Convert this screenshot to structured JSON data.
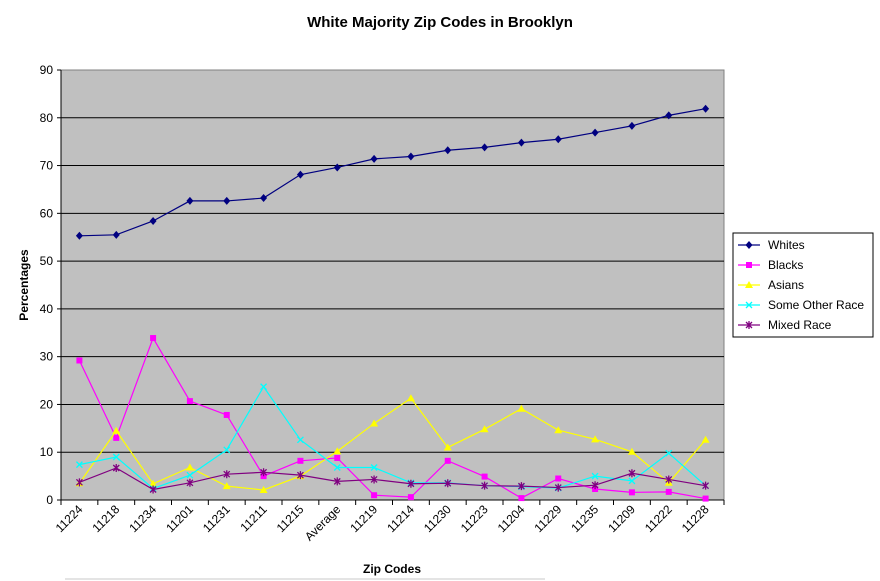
{
  "chart_data": {
    "type": "line",
    "title": "White Majority Zip Codes in Brooklyn",
    "xlabel": "Zip Codes",
    "ylabel": "Percentages",
    "ylim": [
      0,
      90
    ],
    "yticks": [
      0,
      10,
      20,
      30,
      40,
      50,
      60,
      70,
      80,
      90
    ],
    "grid": "horizontal",
    "plot_background": "#C0C0C0",
    "legend_position": "right",
    "categories": [
      "11224",
      "11218",
      "11234",
      "11201",
      "11231",
      "11211",
      "11215",
      "Average",
      "11219",
      "11214",
      "11230",
      "11223",
      "11204",
      "11229",
      "11235",
      "11209",
      "11222",
      "11228"
    ],
    "series": [
      {
        "name": "Whites",
        "color": "#000080",
        "marker": "diamond",
        "values": [
          55.3,
          55.5,
          58.4,
          62.6,
          62.6,
          63.2,
          68.1,
          69.6,
          71.4,
          71.9,
          73.2,
          73.8,
          74.8,
          75.5,
          76.9,
          78.3,
          80.5,
          81.9
        ]
      },
      {
        "name": "Blacks",
        "color": "#FF00FF",
        "marker": "square",
        "values": [
          29.2,
          13.0,
          33.9,
          20.7,
          17.8,
          5.0,
          8.2,
          8.8,
          1.0,
          0.6,
          8.2,
          4.9,
          0.4,
          4.5,
          2.3,
          1.6,
          1.7,
          0.3
        ]
      },
      {
        "name": "Asians",
        "color": "#FFFF00",
        "marker": "triangle",
        "values": [
          3.5,
          14.5,
          3.4,
          6.8,
          2.9,
          2.1,
          5.0,
          10.2,
          16.0,
          21.3,
          11.0,
          14.8,
          19.1,
          14.6,
          12.7,
          10.1,
          3.6,
          12.6
        ]
      },
      {
        "name": "Some Other Race",
        "color": "#00FFFF",
        "marker": "x",
        "values": [
          7.4,
          9.0,
          2.4,
          5.2,
          10.5,
          23.7,
          12.6,
          6.8,
          6.8,
          3.6,
          3.6,
          3.0,
          2.8,
          2.5,
          5.0,
          4.0,
          9.8,
          3.0
        ]
      },
      {
        "name": "Mixed Race",
        "color": "#800080",
        "marker": "star",
        "values": [
          3.7,
          6.7,
          2.2,
          3.6,
          5.4,
          5.8,
          5.2,
          3.9,
          4.3,
          3.4,
          3.5,
          3.0,
          2.9,
          2.6,
          3.1,
          5.6,
          4.3,
          3.0
        ]
      }
    ]
  }
}
